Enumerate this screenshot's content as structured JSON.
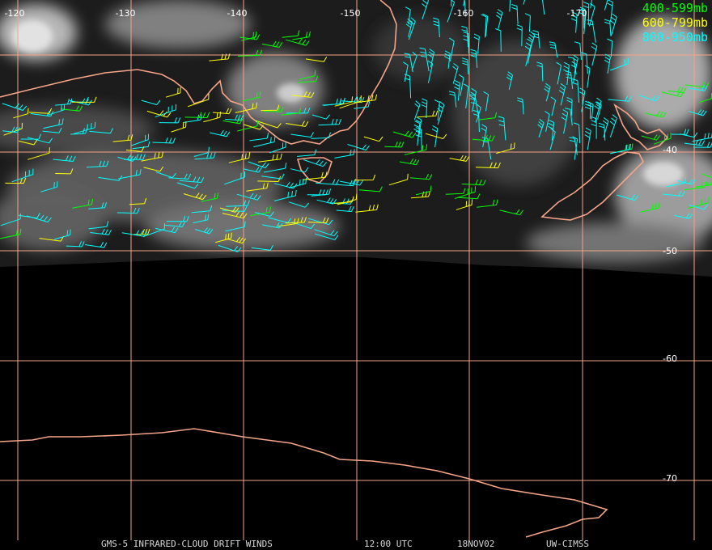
{
  "map": {
    "lon_labels": [
      "-120",
      "-130",
      "-140",
      "-150",
      "-160",
      "-170"
    ],
    "lat_labels": [
      "-40",
      "-50",
      "-60",
      "-70"
    ],
    "legend": [
      {
        "label": "400-599mb",
        "color": "#00ff00"
      },
      {
        "label": "600-799mb",
        "color": "#ffff00"
      },
      {
        "label": "800-950mb",
        "color": "#00ffff"
      }
    ],
    "footer": [
      "GMS-5 INFRARED-CLOUD DRIFT WINDS",
      "12:00 UTC",
      "18NOV02",
      "UW-CIMSS"
    ]
  }
}
